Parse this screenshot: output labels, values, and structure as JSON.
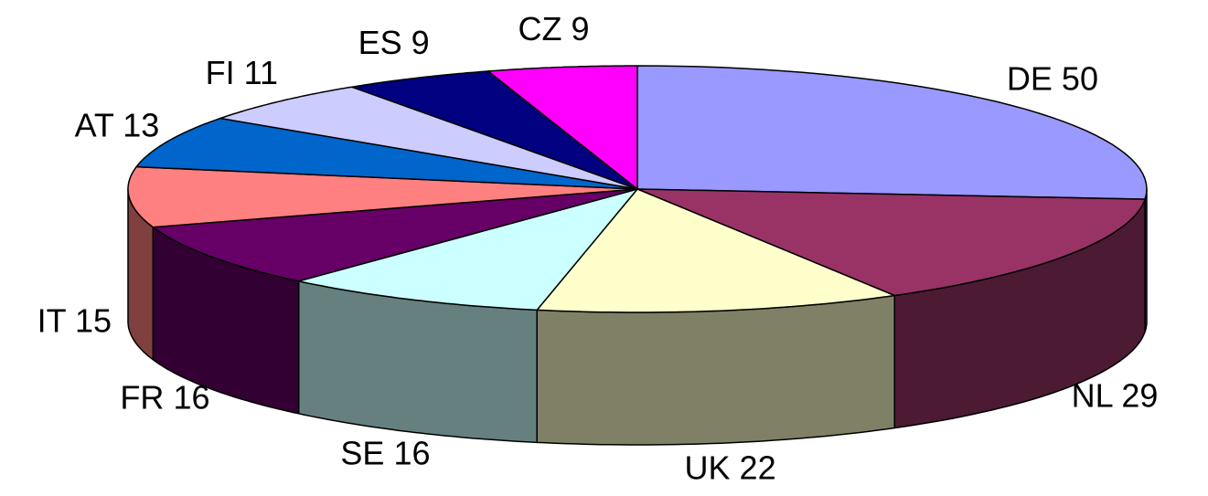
{
  "chart_data": {
    "type": "pie3d",
    "categories": [
      "DE",
      "NL",
      "UK",
      "SE",
      "FR",
      "IT",
      "AT",
      "FI",
      "ES",
      "CZ"
    ],
    "values": [
      50,
      29,
      22,
      16,
      16,
      15,
      13,
      11,
      9,
      9
    ],
    "colors": [
      "#9999ff",
      "#993366",
      "#ffffcc",
      "#ccffff",
      "#660066",
      "#ff8080",
      "#0066cc",
      "#ccccff",
      "#000080",
      "#ff00ff"
    ]
  }
}
